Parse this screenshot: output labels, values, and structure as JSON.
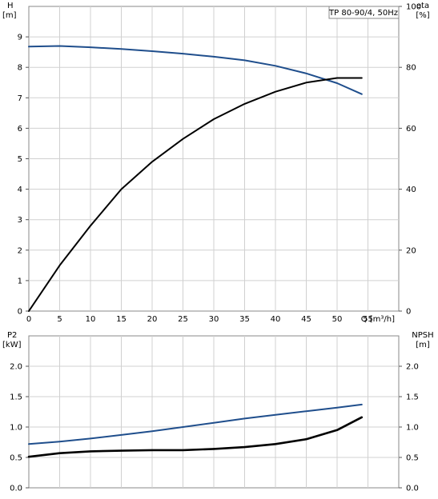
{
  "chart_data": [
    {
      "type": "line",
      "title": "TP 80-90/4, 50Hz",
      "xlabel": "Q [m³/h]",
      "xlim": [
        0,
        60
      ],
      "x_ticks": [
        "0",
        "5",
        "10",
        "15",
        "20",
        "25",
        "30",
        "35",
        "40",
        "45",
        "50",
        "55"
      ],
      "left_axis": {
        "label_line1": "H",
        "label_line2": "[m]",
        "ylim": [
          0,
          10
        ],
        "ticks": [
          "0",
          "1",
          "2",
          "3",
          "4",
          "5",
          "6",
          "7",
          "8",
          "9"
        ]
      },
      "right_axis": {
        "label_line1": "eta",
        "label_line2": "[%]",
        "ylim": [
          0,
          100
        ],
        "ticks": [
          "0",
          "20",
          "40",
          "60",
          "80",
          "100"
        ]
      },
      "series": [
        {
          "color": "#1f4e8c",
          "axis": "left",
          "points": [
            [
              0,
              8.68
            ],
            [
              5,
              8.7
            ],
            [
              10,
              8.66
            ],
            [
              15,
              8.6
            ],
            [
              20,
              8.53
            ],
            [
              25,
              8.45
            ],
            [
              30,
              8.35
            ],
            [
              35,
              8.23
            ],
            [
              40,
              8.05
            ],
            [
              45,
              7.8
            ],
            [
              50,
              7.48
            ],
            [
              54,
              7.12
            ]
          ]
        },
        {
          "color": "#000000",
          "axis": "right",
          "points": [
            [
              0,
              0
            ],
            [
              5,
              15
            ],
            [
              10,
              28
            ],
            [
              15,
              40
            ],
            [
              20,
              49
            ],
            [
              25,
              56.5
            ],
            [
              30,
              63
            ],
            [
              35,
              68
            ],
            [
              40,
              72
            ],
            [
              45,
              75
            ],
            [
              50,
              76.5
            ],
            [
              54,
              76.5
            ]
          ]
        }
      ],
      "grid": true
    },
    {
      "type": "line",
      "left_axis": {
        "label_line1": "P2",
        "label_line2": "[kW]",
        "ylim": [
          0,
          2.5
        ],
        "ticks": [
          "0.0",
          "0.5",
          "1.0",
          "1.5",
          "2.0"
        ]
      },
      "right_axis": {
        "label_line1": "NPSH",
        "label_line2": "[m]",
        "ylim": [
          0,
          2.5
        ],
        "ticks": [
          "0.0",
          "0.5",
          "1.0",
          "1.5",
          "2.0"
        ]
      },
      "xlim": [
        0,
        60
      ],
      "series": [
        {
          "color": "#1f4e8c",
          "axis": "left",
          "points": [
            [
              0,
              0.72
            ],
            [
              5,
              0.76
            ],
            [
              10,
              0.81
            ],
            [
              15,
              0.87
            ],
            [
              20,
              0.93
            ],
            [
              25,
              1.0
            ],
            [
              30,
              1.07
            ],
            [
              35,
              1.14
            ],
            [
              40,
              1.2
            ],
            [
              45,
              1.26
            ],
            [
              50,
              1.32
            ],
            [
              54,
              1.37
            ]
          ]
        },
        {
          "color": "#000000",
          "axis": "right",
          "points": [
            [
              0,
              0.51
            ],
            [
              5,
              0.57
            ],
            [
              10,
              0.6
            ],
            [
              15,
              0.61
            ],
            [
              20,
              0.62
            ],
            [
              25,
              0.62
            ],
            [
              30,
              0.64
            ],
            [
              35,
              0.67
            ],
            [
              40,
              0.72
            ],
            [
              45,
              0.8
            ],
            [
              50,
              0.95
            ],
            [
              54,
              1.16
            ]
          ]
        }
      ],
      "grid": true
    }
  ]
}
